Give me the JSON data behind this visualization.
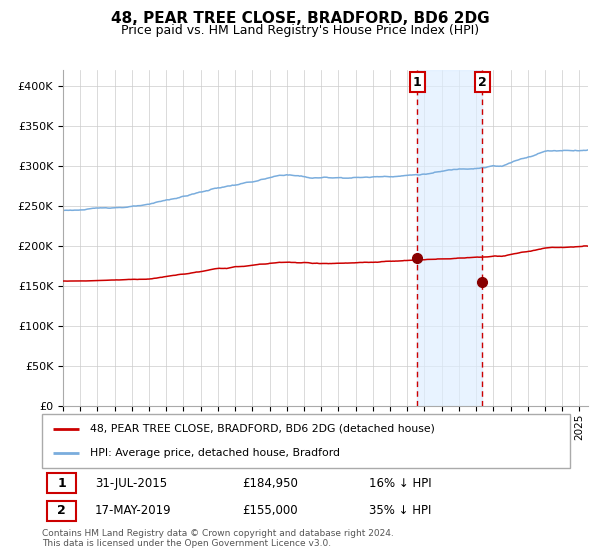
{
  "title": "48, PEAR TREE CLOSE, BRADFORD, BD6 2DG",
  "subtitle": "Price paid vs. HM Land Registry's House Price Index (HPI)",
  "legend_line1": "48, PEAR TREE CLOSE, BRADFORD, BD6 2DG (detached house)",
  "legend_line2": "HPI: Average price, detached house, Bradford",
  "sale1_date": "31-JUL-2015",
  "sale1_price": "£184,950",
  "sale1_hpi": "16% ↓ HPI",
  "sale1_year": 2015.58,
  "sale1_value": 184950,
  "sale2_date": "17-MAY-2019",
  "sale2_price": "£155,000",
  "sale2_hpi": "35% ↓ HPI",
  "sale2_year": 2019.37,
  "sale2_value": 155000,
  "hpi_color": "#7aaddd",
  "price_color": "#cc0000",
  "marker_color": "#880000",
  "vline_color": "#cc0000",
  "shade_color": "#ddeeff",
  "label_box_color": "#cc0000",
  "footer": "Contains HM Land Registry data © Crown copyright and database right 2024.\nThis data is licensed under the Open Government Licence v3.0.",
  "ylim_max": 420000,
  "yticks": [
    0,
    50000,
    100000,
    150000,
    200000,
    250000,
    300000,
    350000,
    400000
  ],
  "ytick_labels": [
    "£0",
    "£50K",
    "£100K",
    "£150K",
    "£200K",
    "£250K",
    "£300K",
    "£350K",
    "£400K"
  ],
  "xlim_start": 1995.0,
  "xlim_end": 2025.5
}
